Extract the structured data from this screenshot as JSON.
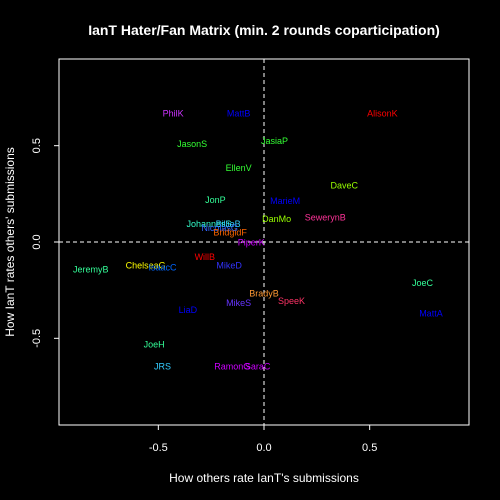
{
  "chart_data": {
    "type": "scatter",
    "title": "IanT Hater/Fan Matrix (min. 2 rounds coparticipation)",
    "xlabel": "How others rate IanT's submissions",
    "ylabel": "How IanT rates others' submissions",
    "xlim": [
      -0.97,
      0.97
    ],
    "ylim": [
      -0.95,
      0.95
    ],
    "x_ticks": [
      -0.5,
      0.0,
      0.5
    ],
    "y_ticks": [
      -0.5,
      0.0,
      0.5
    ],
    "x_tick_labels": [
      "-0.5",
      "0.0",
      "0.5"
    ],
    "y_tick_labels": [
      "-0.5",
      "0.0",
      "0.5"
    ],
    "reference_lines": {
      "x": 0,
      "y": 0,
      "style": "dashed"
    },
    "background": "#000000",
    "points": [
      {
        "label": "PhilK",
        "x": -0.43,
        "y": 0.665,
        "color": "#cc33ff"
      },
      {
        "label": "MattB",
        "x": -0.12,
        "y": 0.665,
        "color": "#0000ff"
      },
      {
        "label": "AlisonK",
        "x": 0.56,
        "y": 0.665,
        "color": "#ff0000"
      },
      {
        "label": "JasonS",
        "x": -0.34,
        "y": 0.505,
        "color": "#33ff33"
      },
      {
        "label": "JasiaP",
        "x": 0.05,
        "y": 0.52,
        "color": "#33ff33"
      },
      {
        "label": "EllenV",
        "x": -0.12,
        "y": 0.38,
        "color": "#33ff33"
      },
      {
        "label": "DaveC",
        "x": 0.38,
        "y": 0.29,
        "color": "#99ff00"
      },
      {
        "label": "JonP",
        "x": -0.23,
        "y": 0.215,
        "color": "#33ff99"
      },
      {
        "label": "MarieM",
        "x": 0.1,
        "y": 0.21,
        "color": "#0000ff"
      },
      {
        "label": "SewerynB",
        "x": 0.29,
        "y": 0.125,
        "color": "#ff3399"
      },
      {
        "label": "DanMo",
        "x": 0.06,
        "y": 0.115,
        "color": "#99ff00"
      },
      {
        "label": "JohannesS",
        "x": -0.26,
        "y": 0.09,
        "color": "#33ffcc"
      },
      {
        "label": "BillieB",
        "x": -0.17,
        "y": 0.09,
        "color": "#33ccff"
      },
      {
        "label": "NicolasG",
        "x": -0.21,
        "y": 0.07,
        "color": "#3366ff"
      },
      {
        "label": "BridgidF",
        "x": -0.16,
        "y": 0.045,
        "color": "#ff6600"
      },
      {
        "label": "PiperK",
        "x": -0.06,
        "y": -0.005,
        "color": "#cc00ff"
      },
      {
        "label": "WillB",
        "x": -0.28,
        "y": -0.08,
        "color": "#ff0000"
      },
      {
        "label": "MikeD",
        "x": -0.165,
        "y": -0.125,
        "color": "#3333ff"
      },
      {
        "label": "ChelseaG",
        "x": -0.56,
        "y": -0.125,
        "color": "#ffff00"
      },
      {
        "label": "IsaacC",
        "x": -0.48,
        "y": -0.135,
        "color": "#0066ff"
      },
      {
        "label": "JeremyB",
        "x": -0.82,
        "y": -0.145,
        "color": "#33ff99"
      },
      {
        "label": "JoeC",
        "x": 0.75,
        "y": -0.215,
        "color": "#33ff99"
      },
      {
        "label": "BradyB",
        "x": 0.0,
        "y": -0.27,
        "color": "#ff9933"
      },
      {
        "label": "SpeeK",
        "x": 0.13,
        "y": -0.31,
        "color": "#ff3366"
      },
      {
        "label": "MikeS",
        "x": -0.12,
        "y": -0.32,
        "color": "#6633ff"
      },
      {
        "label": "LiaD",
        "x": -0.36,
        "y": -0.355,
        "color": "#0000ff"
      },
      {
        "label": "MattA",
        "x": 0.79,
        "y": -0.375,
        "color": "#0000ff"
      },
      {
        "label": "JoeH",
        "x": -0.52,
        "y": -0.535,
        "color": "#33ff99"
      },
      {
        "label": "JRS",
        "x": -0.48,
        "y": -0.65,
        "color": "#33ccff"
      },
      {
        "label": "RamonG",
        "x": -0.15,
        "y": -0.65,
        "color": "#cc00ff"
      },
      {
        "label": "SaraC",
        "x": -0.03,
        "y": -0.65,
        "color": "#cc00ff"
      }
    ]
  }
}
